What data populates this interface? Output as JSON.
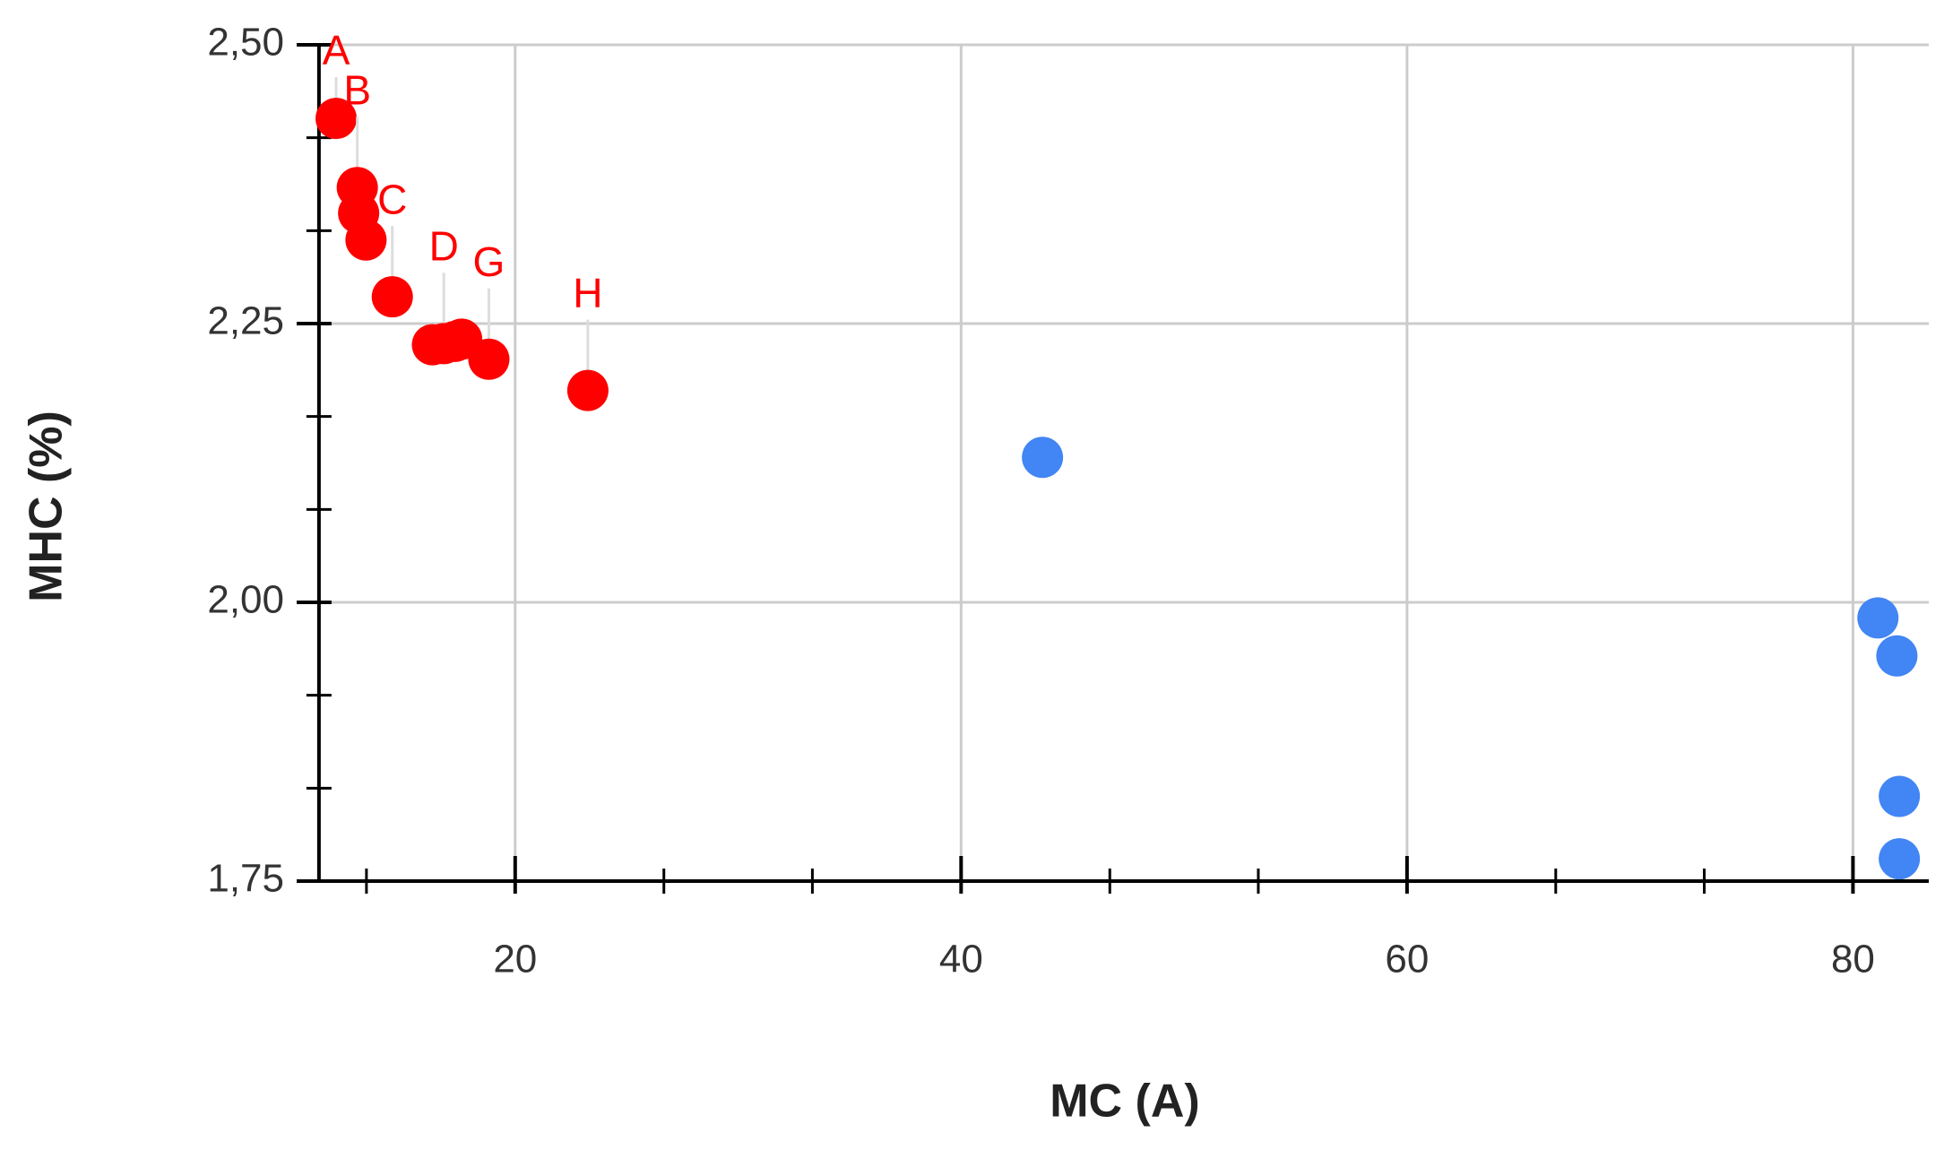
{
  "chart_data": {
    "type": "scatter",
    "x_label": "MC (A)",
    "y_label": "MHC (%)",
    "xlim": [
      10.2,
      83.4
    ],
    "ylim": [
      1.75,
      2.5
    ],
    "xticks": [
      20,
      40,
      60,
      80
    ],
    "yticks": [
      {
        "value": 1.75,
        "label": "1,75"
      },
      {
        "value": 2.0,
        "label": "2,00"
      },
      {
        "value": 2.25,
        "label": "2,25"
      },
      {
        "value": 2.5,
        "label": "2,50"
      }
    ],
    "x_minor_ticks": [
      13.33,
      26.67,
      33.33,
      46.67,
      53.33,
      66.67,
      73.33
    ],
    "y_minor_ticks": [
      2.4167,
      2.3333,
      2.1667,
      2.0833,
      1.9167,
      1.8333
    ],
    "y_axis_x": 11.2,
    "grid": true,
    "series": [
      {
        "color": "#ff0000",
        "x": [
          11.97,
          12.92,
          12.98,
          13.31,
          14.49,
          16.29,
          16.8,
          17.3,
          17.6,
          18.82,
          23.26
        ],
        "values": [
          2.434,
          2.372,
          2.349,
          2.325,
          2.274,
          2.231,
          2.232,
          2.234,
          2.236,
          2.218,
          2.19
        ],
        "labels": [
          "A",
          "B",
          null,
          null,
          "C",
          null,
          "D",
          null,
          null,
          "G",
          "H"
        ]
      },
      {
        "color": "#4285f4",
        "x": [
          43.65,
          81.12,
          81.97,
          82.08,
          82.08
        ],
        "values": [
          2.13,
          1.986,
          1.952,
          1.826,
          1.77
        ]
      }
    ]
  }
}
